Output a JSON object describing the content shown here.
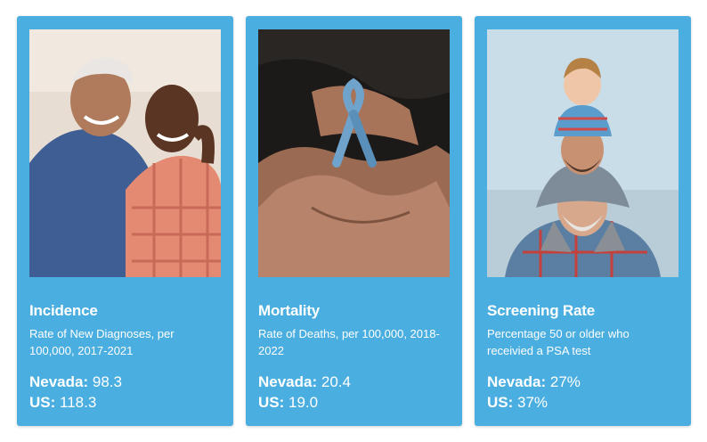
{
  "cards": [
    {
      "image": "two-older-men-smiling-photo",
      "title": "Incidence",
      "description": "Rate of New Diagnoses, per 100,000, 2017-2021",
      "nevada_label": "Nevada:",
      "nevada_value": "98.3",
      "us_label": "US:",
      "us_value": "118.3"
    },
    {
      "image": "hands-holding-blue-ribbon-photo",
      "title": "Mortality",
      "description": "Rate of Deaths, per 100,000, 2018-2022",
      "nevada_label": "Nevada:",
      "nevada_value": "20.4",
      "us_label": "US:",
      "us_value": "19.0"
    },
    {
      "image": "three-generations-shoulders-photo",
      "title": "Screening Rate",
      "description": "Percentage 50 or older who receivied a PSA test",
      "nevada_label": "Nevada:",
      "nevada_value": "27%",
      "us_label": "US:",
      "us_value": "37%"
    }
  ],
  "colors": {
    "card_background": "#4aaee0",
    "text": "#ffffff",
    "ribbon": "#6fa3cc"
  }
}
